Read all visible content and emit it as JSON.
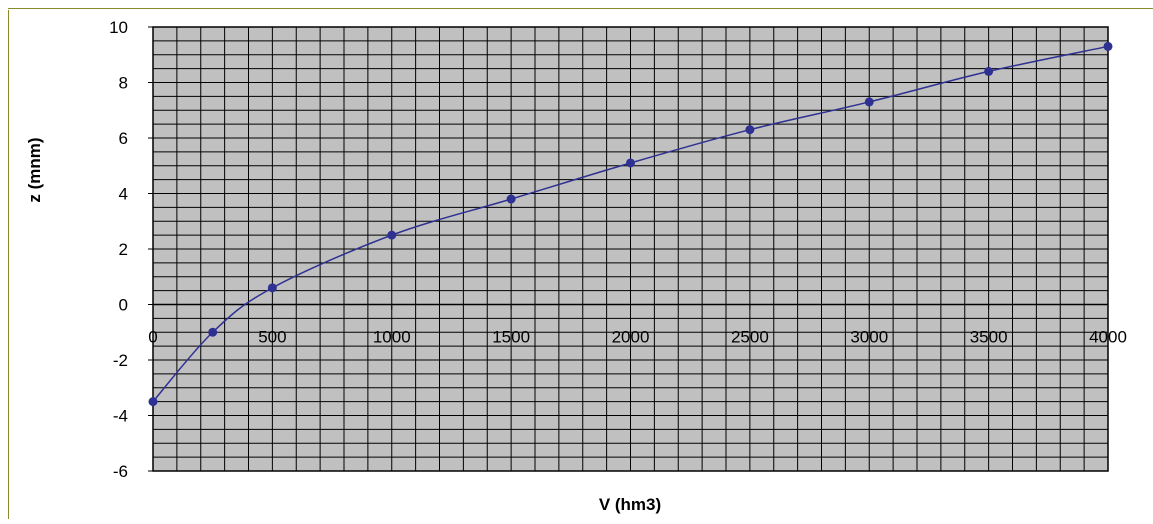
{
  "chart_data": {
    "type": "line",
    "title": "",
    "xlabel": "V (hm3)",
    "ylabel": "z (mnm)",
    "xlim": [
      0,
      4000
    ],
    "ylim": [
      -6,
      10
    ],
    "x_ticks": [
      0,
      500,
      1000,
      1500,
      2000,
      2500,
      3000,
      3500,
      4000
    ],
    "y_ticks": [
      -6,
      -4,
      -2,
      0,
      2,
      4,
      6,
      8,
      10
    ],
    "x_tick_labels": [
      "0",
      "500",
      "1000",
      "1500",
      "2000",
      "2500",
      "3000",
      "3500",
      "4000"
    ],
    "y_tick_labels": [
      "-6",
      "-4",
      "-2",
      "0",
      "2",
      "4",
      "6",
      "8",
      "10"
    ],
    "grid": true,
    "minor_grid_x_step": 100,
    "minor_grid_y_step": 0.5,
    "legend": "none",
    "colors": {
      "plot_background": "#c0c0c0",
      "grid": "#000000",
      "series": "#2e3192",
      "frame_accent": "#8a8a2a"
    },
    "series": [
      {
        "x": [
          0,
          250,
          500,
          1000,
          1500,
          2000,
          2500,
          3000,
          3500,
          4000
        ],
        "y": [
          -3.5,
          -1.0,
          0.6,
          2.5,
          3.8,
          5.1,
          6.3,
          7.3,
          8.4,
          9.3
        ]
      }
    ]
  }
}
